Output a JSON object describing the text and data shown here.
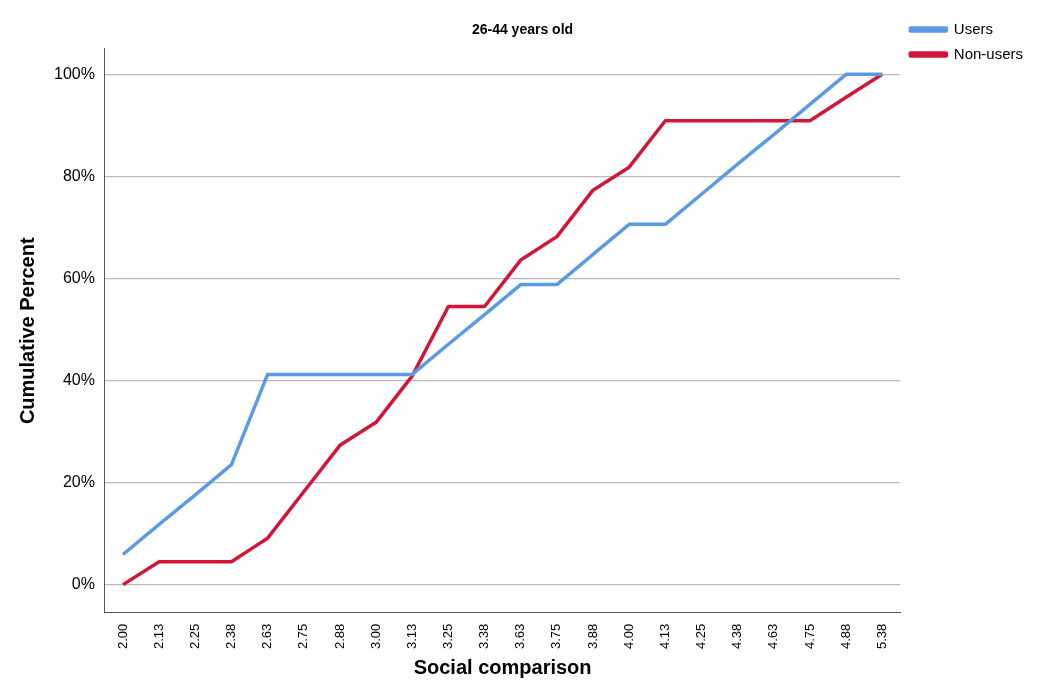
{
  "chart_data": {
    "type": "line",
    "title": "26-44 years old",
    "xlabel": "Social comparison",
    "ylabel": "Cumulative Percent",
    "categories": [
      "2.00",
      "2.13",
      "2.25",
      "2.38",
      "2.63",
      "2.75",
      "2.88",
      "3.00",
      "3.13",
      "3.25",
      "3.38",
      "3.63",
      "3.75",
      "3.88",
      "4.00",
      "4.13",
      "4.25",
      "4.38",
      "4.63",
      "4.75",
      "4.88",
      "5.38"
    ],
    "series": [
      {
        "name": "Users",
        "color": "#5b9be6",
        "values": [
          5.9,
          11.8,
          17.6,
          23.5,
          41.2,
          41.2,
          41.2,
          41.2,
          41.2,
          47.1,
          52.9,
          58.8,
          58.8,
          64.7,
          70.6,
          70.6,
          76.5,
          82.4,
          88.2,
          94.1,
          100,
          100
        ]
      },
      {
        "name": "Non-users",
        "color": "#d2163a",
        "values": [
          0,
          4.5,
          4.5,
          4.5,
          9.1,
          18.2,
          27.3,
          31.8,
          40.9,
          54.5,
          54.5,
          63.6,
          68.2,
          77.3,
          81.8,
          90.9,
          90.9,
          90.9,
          90.9,
          90.9,
          95.5,
          100
        ]
      }
    ],
    "ylim": [
      -5.5,
      105
    ],
    "yticks": [
      {
        "value": 0,
        "label": "0%"
      },
      {
        "value": 20,
        "label": "20%"
      },
      {
        "value": 40,
        "label": "40%"
      },
      {
        "value": 60,
        "label": "60%"
      },
      {
        "value": 80,
        "label": "80%"
      },
      {
        "value": 100,
        "label": "100%"
      }
    ],
    "grid": "y",
    "legend": "top right",
    "marker": "none",
    "line_style": "solid"
  }
}
